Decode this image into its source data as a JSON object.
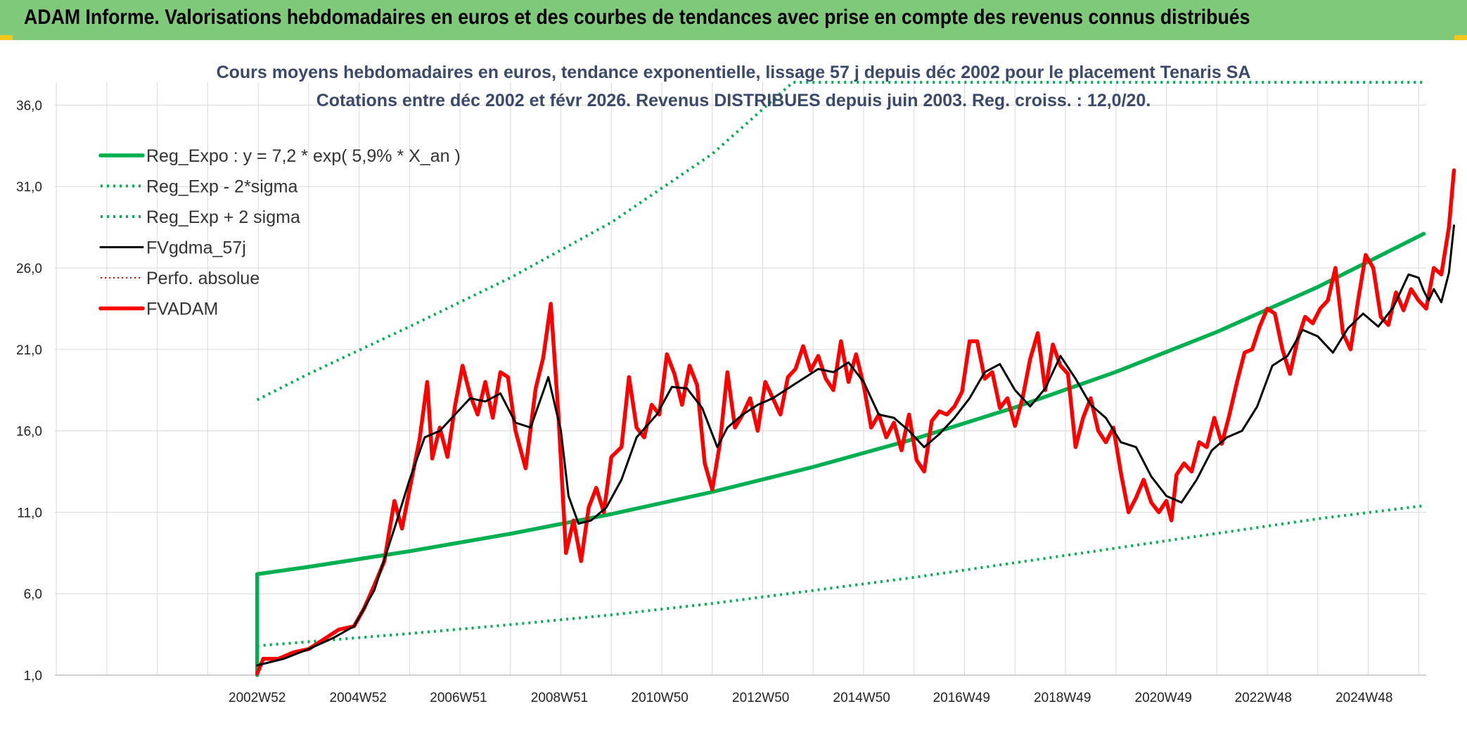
{
  "banner": {
    "title": "ADAM Informe. Valorisations hebdomadaires en euros et des courbes de tendances avec prise en compte des revenus connus distribués"
  },
  "colors": {
    "banner_bg": "#7fc97a",
    "reg_green": "#00b050",
    "perf_red": "#ff0000",
    "fvgdma_black": "#000000",
    "grid": "#d9d9d9",
    "title_text": "#3b4a6b"
  },
  "chart_data": {
    "type": "line",
    "title_lines": [
      "Cours moyens hebdomadaires en euros, tendance exponentielle, lissage 57 j depuis déc 2002 pour le placement Tenaris SA",
      "Cotations entre déc 2002 et févr 2026. Revenus DISTRIBUES depuis juin 2003. Reg. croiss. : 12,0/20."
    ],
    "xlabel": "",
    "ylabel": "",
    "ylim": [
      1,
      37.4
    ],
    "yticks": [
      "1,0",
      "6,0",
      "11,0",
      "16,0",
      "21,0",
      "26,0",
      "31,0",
      "36,0"
    ],
    "xlim": [
      1998.97,
      2026.15
    ],
    "xticks": [
      {
        "x": 2002.98,
        "label": "2002W52"
      },
      {
        "x": 2004.98,
        "label": "2004W52"
      },
      {
        "x": 2006.97,
        "label": "2006W51"
      },
      {
        "x": 2008.97,
        "label": "2008W51"
      },
      {
        "x": 2010.96,
        "label": "2010W50"
      },
      {
        "x": 2012.96,
        "label": "2012W50"
      },
      {
        "x": 2014.96,
        "label": "2014W50"
      },
      {
        "x": 2016.94,
        "label": "2016W49"
      },
      {
        "x": 2018.94,
        "label": "2018W49"
      },
      {
        "x": 2020.94,
        "label": "2020W49"
      },
      {
        "x": 2022.92,
        "label": "2022W48"
      },
      {
        "x": 2024.92,
        "label": "2024W48"
      }
    ],
    "grid": true,
    "legend_position": "top-left",
    "series": [
      {
        "name": "Reg_Expo : y = 7,2 * exp( 5,9% *  X_an )",
        "key": "reg",
        "style": "solid-thick",
        "color": "#00b050",
        "points": [
          [
            2002.98,
            1.0
          ],
          [
            2002.98,
            7.2
          ],
          [
            2004,
            7.65
          ],
          [
            2006,
            8.61
          ],
          [
            2008,
            9.68
          ],
          [
            2010,
            10.89
          ],
          [
            2012,
            12.25
          ],
          [
            2014,
            13.78
          ],
          [
            2016,
            15.5
          ],
          [
            2018,
            17.44
          ],
          [
            2020,
            19.62
          ],
          [
            2022,
            22.07
          ],
          [
            2024,
            24.83
          ],
          [
            2026.1,
            28.1
          ]
        ]
      },
      {
        "name": "Reg_Exp - 2*sigma",
        "key": "low",
        "style": "dotted",
        "color": "#00b050",
        "points": [
          [
            2002.98,
            2.8
          ],
          [
            2004,
            3.05
          ],
          [
            2006,
            3.55
          ],
          [
            2008,
            4.1
          ],
          [
            2010,
            4.7
          ],
          [
            2012,
            5.4
          ],
          [
            2014,
            6.2
          ],
          [
            2016,
            7.0
          ],
          [
            2018,
            7.9
          ],
          [
            2020,
            8.8
          ],
          [
            2022,
            9.7
          ],
          [
            2024,
            10.6
          ],
          [
            2026.1,
            11.4
          ]
        ]
      },
      {
        "name": "Reg_Exp + 2 sigma",
        "key": "high",
        "style": "dotted",
        "color": "#00b050",
        "points": [
          [
            2002.98,
            17.9
          ],
          [
            2004,
            19.5
          ],
          [
            2006,
            22.4
          ],
          [
            2008,
            25.4
          ],
          [
            2010,
            28.8
          ],
          [
            2012,
            33.0
          ],
          [
            2013.6,
            37.4
          ],
          [
            2022.9,
            37.4
          ],
          [
            2026.1,
            37.4
          ]
        ]
      },
      {
        "name": "FVgdma_57j",
        "key": "smooth",
        "style": "solid",
        "color": "#000000",
        "points": [
          [
            2002.98,
            1.6
          ],
          [
            2003.5,
            2.0
          ],
          [
            2004,
            2.6
          ],
          [
            2004.5,
            3.3
          ],
          [
            2004.9,
            4.0
          ],
          [
            2005.3,
            6.2
          ],
          [
            2005.7,
            10.0
          ],
          [
            2006.0,
            13.0
          ],
          [
            2006.3,
            15.6
          ],
          [
            2006.6,
            16.0
          ],
          [
            2006.9,
            17.0
          ],
          [
            2007.2,
            18.0
          ],
          [
            2007.5,
            17.8
          ],
          [
            2007.8,
            18.3
          ],
          [
            2008.1,
            16.5
          ],
          [
            2008.4,
            16.2
          ],
          [
            2008.75,
            19.3
          ],
          [
            2009.0,
            16.0
          ],
          [
            2009.15,
            12.0
          ],
          [
            2009.35,
            10.3
          ],
          [
            2009.6,
            10.5
          ],
          [
            2009.9,
            11.3
          ],
          [
            2010.2,
            13.0
          ],
          [
            2010.5,
            15.6
          ],
          [
            2010.9,
            17.0
          ],
          [
            2011.2,
            18.7
          ],
          [
            2011.5,
            18.6
          ],
          [
            2011.8,
            17.4
          ],
          [
            2012.1,
            15.0
          ],
          [
            2012.3,
            16.2
          ],
          [
            2012.6,
            17.0
          ],
          [
            2012.9,
            17.6
          ],
          [
            2013.2,
            18.0
          ],
          [
            2013.5,
            18.6
          ],
          [
            2013.8,
            19.2
          ],
          [
            2014.1,
            19.8
          ],
          [
            2014.4,
            19.6
          ],
          [
            2014.7,
            20.2
          ],
          [
            2015.0,
            19.0
          ],
          [
            2015.3,
            17.0
          ],
          [
            2015.6,
            16.8
          ],
          [
            2015.9,
            16.0
          ],
          [
            2016.2,
            15.0
          ],
          [
            2016.5,
            15.8
          ],
          [
            2016.8,
            16.8
          ],
          [
            2017.1,
            18.0
          ],
          [
            2017.4,
            19.6
          ],
          [
            2017.7,
            20.1
          ],
          [
            2018.0,
            18.5
          ],
          [
            2018.3,
            17.5
          ],
          [
            2018.6,
            18.6
          ],
          [
            2018.9,
            20.6
          ],
          [
            2019.2,
            19.2
          ],
          [
            2019.5,
            17.6
          ],
          [
            2019.8,
            16.8
          ],
          [
            2020.1,
            15.3
          ],
          [
            2020.4,
            15.0
          ],
          [
            2020.7,
            13.2
          ],
          [
            2021.0,
            12.0
          ],
          [
            2021.3,
            11.6
          ],
          [
            2021.6,
            13.0
          ],
          [
            2021.9,
            14.8
          ],
          [
            2022.2,
            15.6
          ],
          [
            2022.5,
            16.0
          ],
          [
            2022.8,
            17.5
          ],
          [
            2023.1,
            20.0
          ],
          [
            2023.4,
            20.6
          ],
          [
            2023.7,
            22.2
          ],
          [
            2024.0,
            21.8
          ],
          [
            2024.3,
            20.8
          ],
          [
            2024.6,
            22.3
          ],
          [
            2024.9,
            23.2
          ],
          [
            2025.2,
            22.4
          ],
          [
            2025.5,
            23.6
          ],
          [
            2025.8,
            25.6
          ],
          [
            2026.0,
            25.4
          ],
          [
            2026.1,
            24.6
          ],
          [
            2026.2,
            24.0
          ],
          [
            2026.3,
            24.7
          ],
          [
            2026.45,
            23.9
          ],
          [
            2026.6,
            25.7
          ],
          [
            2026.7,
            28.6
          ]
        ]
      },
      {
        "name": "Perfo. absolue",
        "key": "perfo",
        "style": "dotted-fine",
        "color": "#ff0000",
        "points": []
      },
      {
        "name": "FVADAM",
        "key": "fvadam",
        "style": "solid-thick",
        "color": "#ff0000",
        "points": [
          [
            2002.98,
            1.1
          ],
          [
            2003.1,
            2.0
          ],
          [
            2003.4,
            2.0
          ],
          [
            2003.7,
            2.4
          ],
          [
            2004.0,
            2.6
          ],
          [
            2004.3,
            3.2
          ],
          [
            2004.6,
            3.8
          ],
          [
            2004.9,
            4.0
          ],
          [
            2005.1,
            5.1
          ],
          [
            2005.3,
            6.5
          ],
          [
            2005.5,
            8.0
          ],
          [
            2005.7,
            11.7
          ],
          [
            2005.85,
            10.0
          ],
          [
            2006.0,
            12.4
          ],
          [
            2006.2,
            15.5
          ],
          [
            2006.35,
            19.0
          ],
          [
            2006.45,
            14.3
          ],
          [
            2006.6,
            16.2
          ],
          [
            2006.75,
            14.4
          ],
          [
            2006.9,
            17.5
          ],
          [
            2007.05,
            20.0
          ],
          [
            2007.2,
            18.2
          ],
          [
            2007.35,
            17.0
          ],
          [
            2007.5,
            19.0
          ],
          [
            2007.65,
            16.8
          ],
          [
            2007.8,
            19.6
          ],
          [
            2007.95,
            19.3
          ],
          [
            2008.1,
            16.0
          ],
          [
            2008.3,
            13.7
          ],
          [
            2008.5,
            18.6
          ],
          [
            2008.65,
            20.5
          ],
          [
            2008.8,
            23.8
          ],
          [
            2008.95,
            17.0
          ],
          [
            2009.1,
            8.5
          ],
          [
            2009.25,
            10.5
          ],
          [
            2009.4,
            8.0
          ],
          [
            2009.55,
            11.3
          ],
          [
            2009.7,
            12.5
          ],
          [
            2009.85,
            11.0
          ],
          [
            2010.0,
            14.4
          ],
          [
            2010.2,
            15.0
          ],
          [
            2010.35,
            19.3
          ],
          [
            2010.5,
            16.2
          ],
          [
            2010.65,
            15.6
          ],
          [
            2010.8,
            17.6
          ],
          [
            2010.95,
            17.0
          ],
          [
            2011.1,
            20.7
          ],
          [
            2011.25,
            19.5
          ],
          [
            2011.4,
            17.6
          ],
          [
            2011.55,
            20.0
          ],
          [
            2011.7,
            18.8
          ],
          [
            2011.85,
            14.0
          ],
          [
            2012.0,
            12.4
          ],
          [
            2012.15,
            15.2
          ],
          [
            2012.3,
            19.6
          ],
          [
            2012.45,
            16.2
          ],
          [
            2012.6,
            17.0
          ],
          [
            2012.75,
            18.0
          ],
          [
            2012.9,
            16.0
          ],
          [
            2013.05,
            19.0
          ],
          [
            2013.2,
            18.0
          ],
          [
            2013.35,
            17.0
          ],
          [
            2013.5,
            19.3
          ],
          [
            2013.65,
            19.8
          ],
          [
            2013.8,
            21.2
          ],
          [
            2013.95,
            19.7
          ],
          [
            2014.1,
            20.6
          ],
          [
            2014.25,
            19.2
          ],
          [
            2014.4,
            18.5
          ],
          [
            2014.55,
            21.5
          ],
          [
            2014.7,
            19.0
          ],
          [
            2014.85,
            20.7
          ],
          [
            2015.0,
            18.8
          ],
          [
            2015.15,
            16.2
          ],
          [
            2015.3,
            17.0
          ],
          [
            2015.45,
            15.6
          ],
          [
            2015.6,
            16.5
          ],
          [
            2015.75,
            14.8
          ],
          [
            2015.9,
            17.0
          ],
          [
            2016.05,
            14.2
          ],
          [
            2016.2,
            13.5
          ],
          [
            2016.35,
            16.6
          ],
          [
            2016.5,
            17.2
          ],
          [
            2016.65,
            17.0
          ],
          [
            2016.8,
            17.5
          ],
          [
            2016.95,
            18.4
          ],
          [
            2017.1,
            21.5
          ],
          [
            2017.25,
            21.5
          ],
          [
            2017.4,
            19.2
          ],
          [
            2017.55,
            19.6
          ],
          [
            2017.7,
            17.4
          ],
          [
            2017.85,
            18.0
          ],
          [
            2018.0,
            16.3
          ],
          [
            2018.15,
            18.0
          ],
          [
            2018.3,
            20.4
          ],
          [
            2018.45,
            22.0
          ],
          [
            2018.6,
            18.5
          ],
          [
            2018.75,
            21.3
          ],
          [
            2018.9,
            20.0
          ],
          [
            2019.05,
            19.5
          ],
          [
            2019.2,
            15.0
          ],
          [
            2019.35,
            16.8
          ],
          [
            2019.5,
            18.0
          ],
          [
            2019.65,
            16.0
          ],
          [
            2019.8,
            15.3
          ],
          [
            2019.95,
            16.2
          ],
          [
            2020.1,
            13.4
          ],
          [
            2020.25,
            11.0
          ],
          [
            2020.4,
            11.9
          ],
          [
            2020.55,
            13.0
          ],
          [
            2020.7,
            11.6
          ],
          [
            2020.85,
            11.0
          ],
          [
            2021.0,
            11.7
          ],
          [
            2021.1,
            10.5
          ],
          [
            2021.2,
            13.3
          ],
          [
            2021.35,
            14.0
          ],
          [
            2021.5,
            13.5
          ],
          [
            2021.65,
            15.3
          ],
          [
            2021.8,
            15.0
          ],
          [
            2021.95,
            16.8
          ],
          [
            2022.1,
            15.2
          ],
          [
            2022.25,
            17.0
          ],
          [
            2022.4,
            19.0
          ],
          [
            2022.55,
            20.8
          ],
          [
            2022.7,
            21.0
          ],
          [
            2022.85,
            22.4
          ],
          [
            2023.0,
            23.5
          ],
          [
            2023.15,
            23.2
          ],
          [
            2023.3,
            21.0
          ],
          [
            2023.45,
            19.5
          ],
          [
            2023.6,
            21.6
          ],
          [
            2023.75,
            23.0
          ],
          [
            2023.9,
            22.6
          ],
          [
            2024.05,
            23.5
          ],
          [
            2024.2,
            24.0
          ],
          [
            2024.35,
            26.0
          ],
          [
            2024.5,
            22.0
          ],
          [
            2024.65,
            21.0
          ],
          [
            2024.8,
            24.0
          ],
          [
            2024.95,
            26.8
          ],
          [
            2025.1,
            26.0
          ],
          [
            2025.25,
            23.0
          ],
          [
            2025.4,
            22.5
          ],
          [
            2025.55,
            24.5
          ],
          [
            2025.7,
            23.4
          ],
          [
            2025.85,
            24.7
          ],
          [
            2026.0,
            24.0
          ],
          [
            2026.15,
            23.5
          ],
          [
            2026.3,
            26.0
          ],
          [
            2026.45,
            25.6
          ],
          [
            2026.6,
            28.5
          ],
          [
            2026.7,
            32.0
          ]
        ]
      }
    ]
  }
}
